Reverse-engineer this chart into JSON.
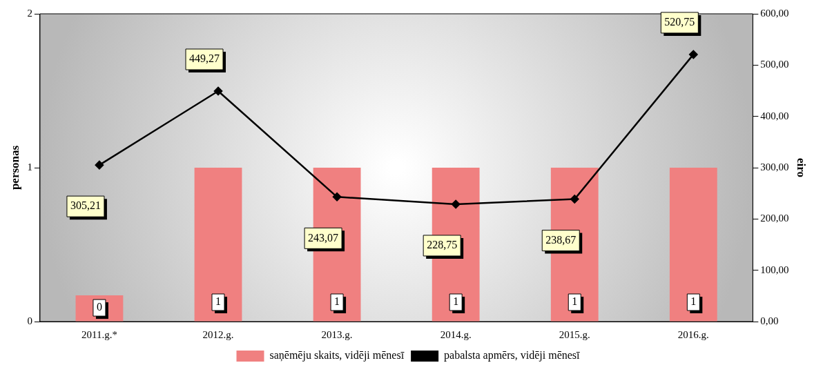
{
  "chart_data": {
    "type": "bar",
    "ylabel": "personas",
    "y2label": "eiro",
    "categories": [
      "2011.g.*",
      "2012.g.",
      "2013.g.",
      "2014.g.",
      "2015.g.",
      "2016.g."
    ],
    "series": [
      {
        "name": "saņēmēju skaits, vidēji mēnesī",
        "color": "#f08080",
        "values": [
          0.17,
          1,
          1,
          1,
          1,
          1
        ],
        "value_labels": [
          "0",
          "1",
          "1",
          "1",
          "1",
          "1"
        ]
      },
      {
        "type": "line",
        "axis": "y2",
        "name": "pabalsta apmērs, vidēji mēnesī",
        "color": "#000000",
        "values": [
          305.21,
          449.27,
          243.07,
          228.75,
          238.67,
          520.75
        ],
        "value_labels": [
          "305,21",
          "449,27",
          "243,07",
          "228,75",
          "238,67",
          "520,75"
        ]
      }
    ],
    "ylim": [
      0,
      2
    ],
    "yticks": [
      0,
      1,
      2
    ],
    "y2lim": [
      0,
      600
    ],
    "y2ticks": [
      {
        "value": 0,
        "label": "0,00"
      },
      {
        "value": 100,
        "label": "100,00"
      },
      {
        "value": 200,
        "label": "200,00"
      },
      {
        "value": 300,
        "label": "300,00"
      },
      {
        "value": 400,
        "label": "400,00"
      },
      {
        "value": 500,
        "label": "500,00"
      },
      {
        "value": 600,
        "label": "600,00"
      }
    ],
    "marker": "diamond",
    "legend": "bottom",
    "grid": false
  }
}
